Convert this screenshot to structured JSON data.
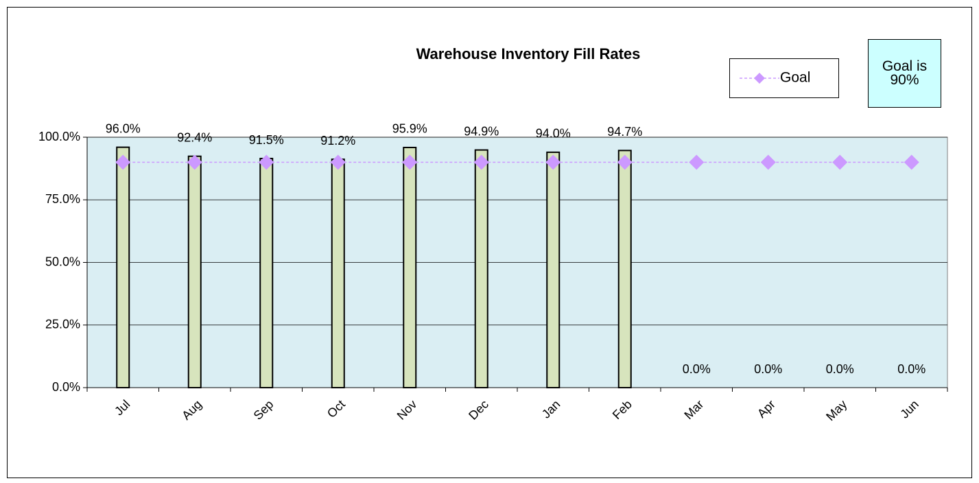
{
  "chart_data": {
    "type": "bar",
    "title": "Warehouse Inventory Fill Rates",
    "categories": [
      "Jul",
      "Aug",
      "Sep",
      "Oct",
      "Nov",
      "Dec",
      "Jan",
      "Feb",
      "Mar",
      "Apr",
      "May",
      "Jun"
    ],
    "series": [
      {
        "color": "#d7e4bd",
        "type": "bar",
        "values": [
          96.0,
          92.4,
          91.5,
          91.2,
          95.9,
          94.9,
          94.0,
          94.7,
          0,
          0,
          0,
          0
        ],
        "value_labels": [
          "96.0%",
          "92.4%",
          "91.5%",
          "91.2%",
          "95.9%",
          "94.9%",
          "94.0%",
          "94.7%",
          "0.0%",
          "0.0%",
          "0.0%",
          "0.0%"
        ]
      },
      {
        "name": "Goal",
        "color": "#cc99ff",
        "type": "line",
        "values": [
          90,
          90,
          90,
          90,
          90,
          90,
          90,
          90,
          90,
          90,
          90,
          90
        ]
      }
    ],
    "ylim": [
      0,
      100
    ],
    "yticks": [
      {
        "value": 0,
        "label": "0.0%"
      },
      {
        "value": 25,
        "label": "25.0%"
      },
      {
        "value": 50,
        "label": "50.0%"
      },
      {
        "value": 75,
        "label": "75.0%"
      },
      {
        "value": 100,
        "label": "100.0%"
      }
    ],
    "grid": true,
    "plot_background": "#daeef3",
    "legend": "top-right",
    "annotation": "Goal is 90%"
  }
}
